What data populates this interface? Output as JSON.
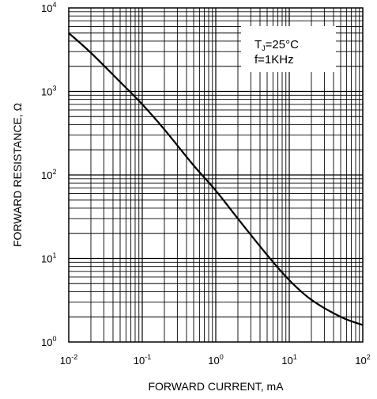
{
  "chart_data": {
    "type": "line",
    "xlabel": "FORWARD CURRENT, mA",
    "ylabel": "FORWARD RESISTANCE, Ω",
    "x_scale": "log",
    "y_scale": "log",
    "xlim": [
      0.01,
      100
    ],
    "ylim": [
      1,
      10000
    ],
    "grid": true,
    "x_ticks": [
      {
        "base": "10",
        "exp": "-2"
      },
      {
        "base": "10",
        "exp": "-1"
      },
      {
        "base": "10",
        "exp": "0"
      },
      {
        "base": "10",
        "exp": "1"
      },
      {
        "base": "10",
        "exp": "2"
      }
    ],
    "y_ticks": [
      {
        "base": "10",
        "exp": "0"
      },
      {
        "base": "10",
        "exp": "1"
      },
      {
        "base": "10",
        "exp": "2"
      },
      {
        "base": "10",
        "exp": "3"
      },
      {
        "base": "10",
        "exp": "4"
      }
    ],
    "annotation": {
      "line1_main": "T",
      "line1_sub": "J",
      "line1_rest": "=25°C",
      "line2": "f=1KHz"
    },
    "series": [
      {
        "x": [
          0.01,
          0.02,
          0.05,
          0.1,
          0.2,
          0.5,
          1,
          2,
          5,
          10,
          20,
          50,
          100
        ],
        "y": [
          5000,
          2900,
          1300,
          700,
          350,
          130,
          65,
          30,
          11,
          5.5,
          3.2,
          2.0,
          1.6
        ]
      }
    ]
  }
}
